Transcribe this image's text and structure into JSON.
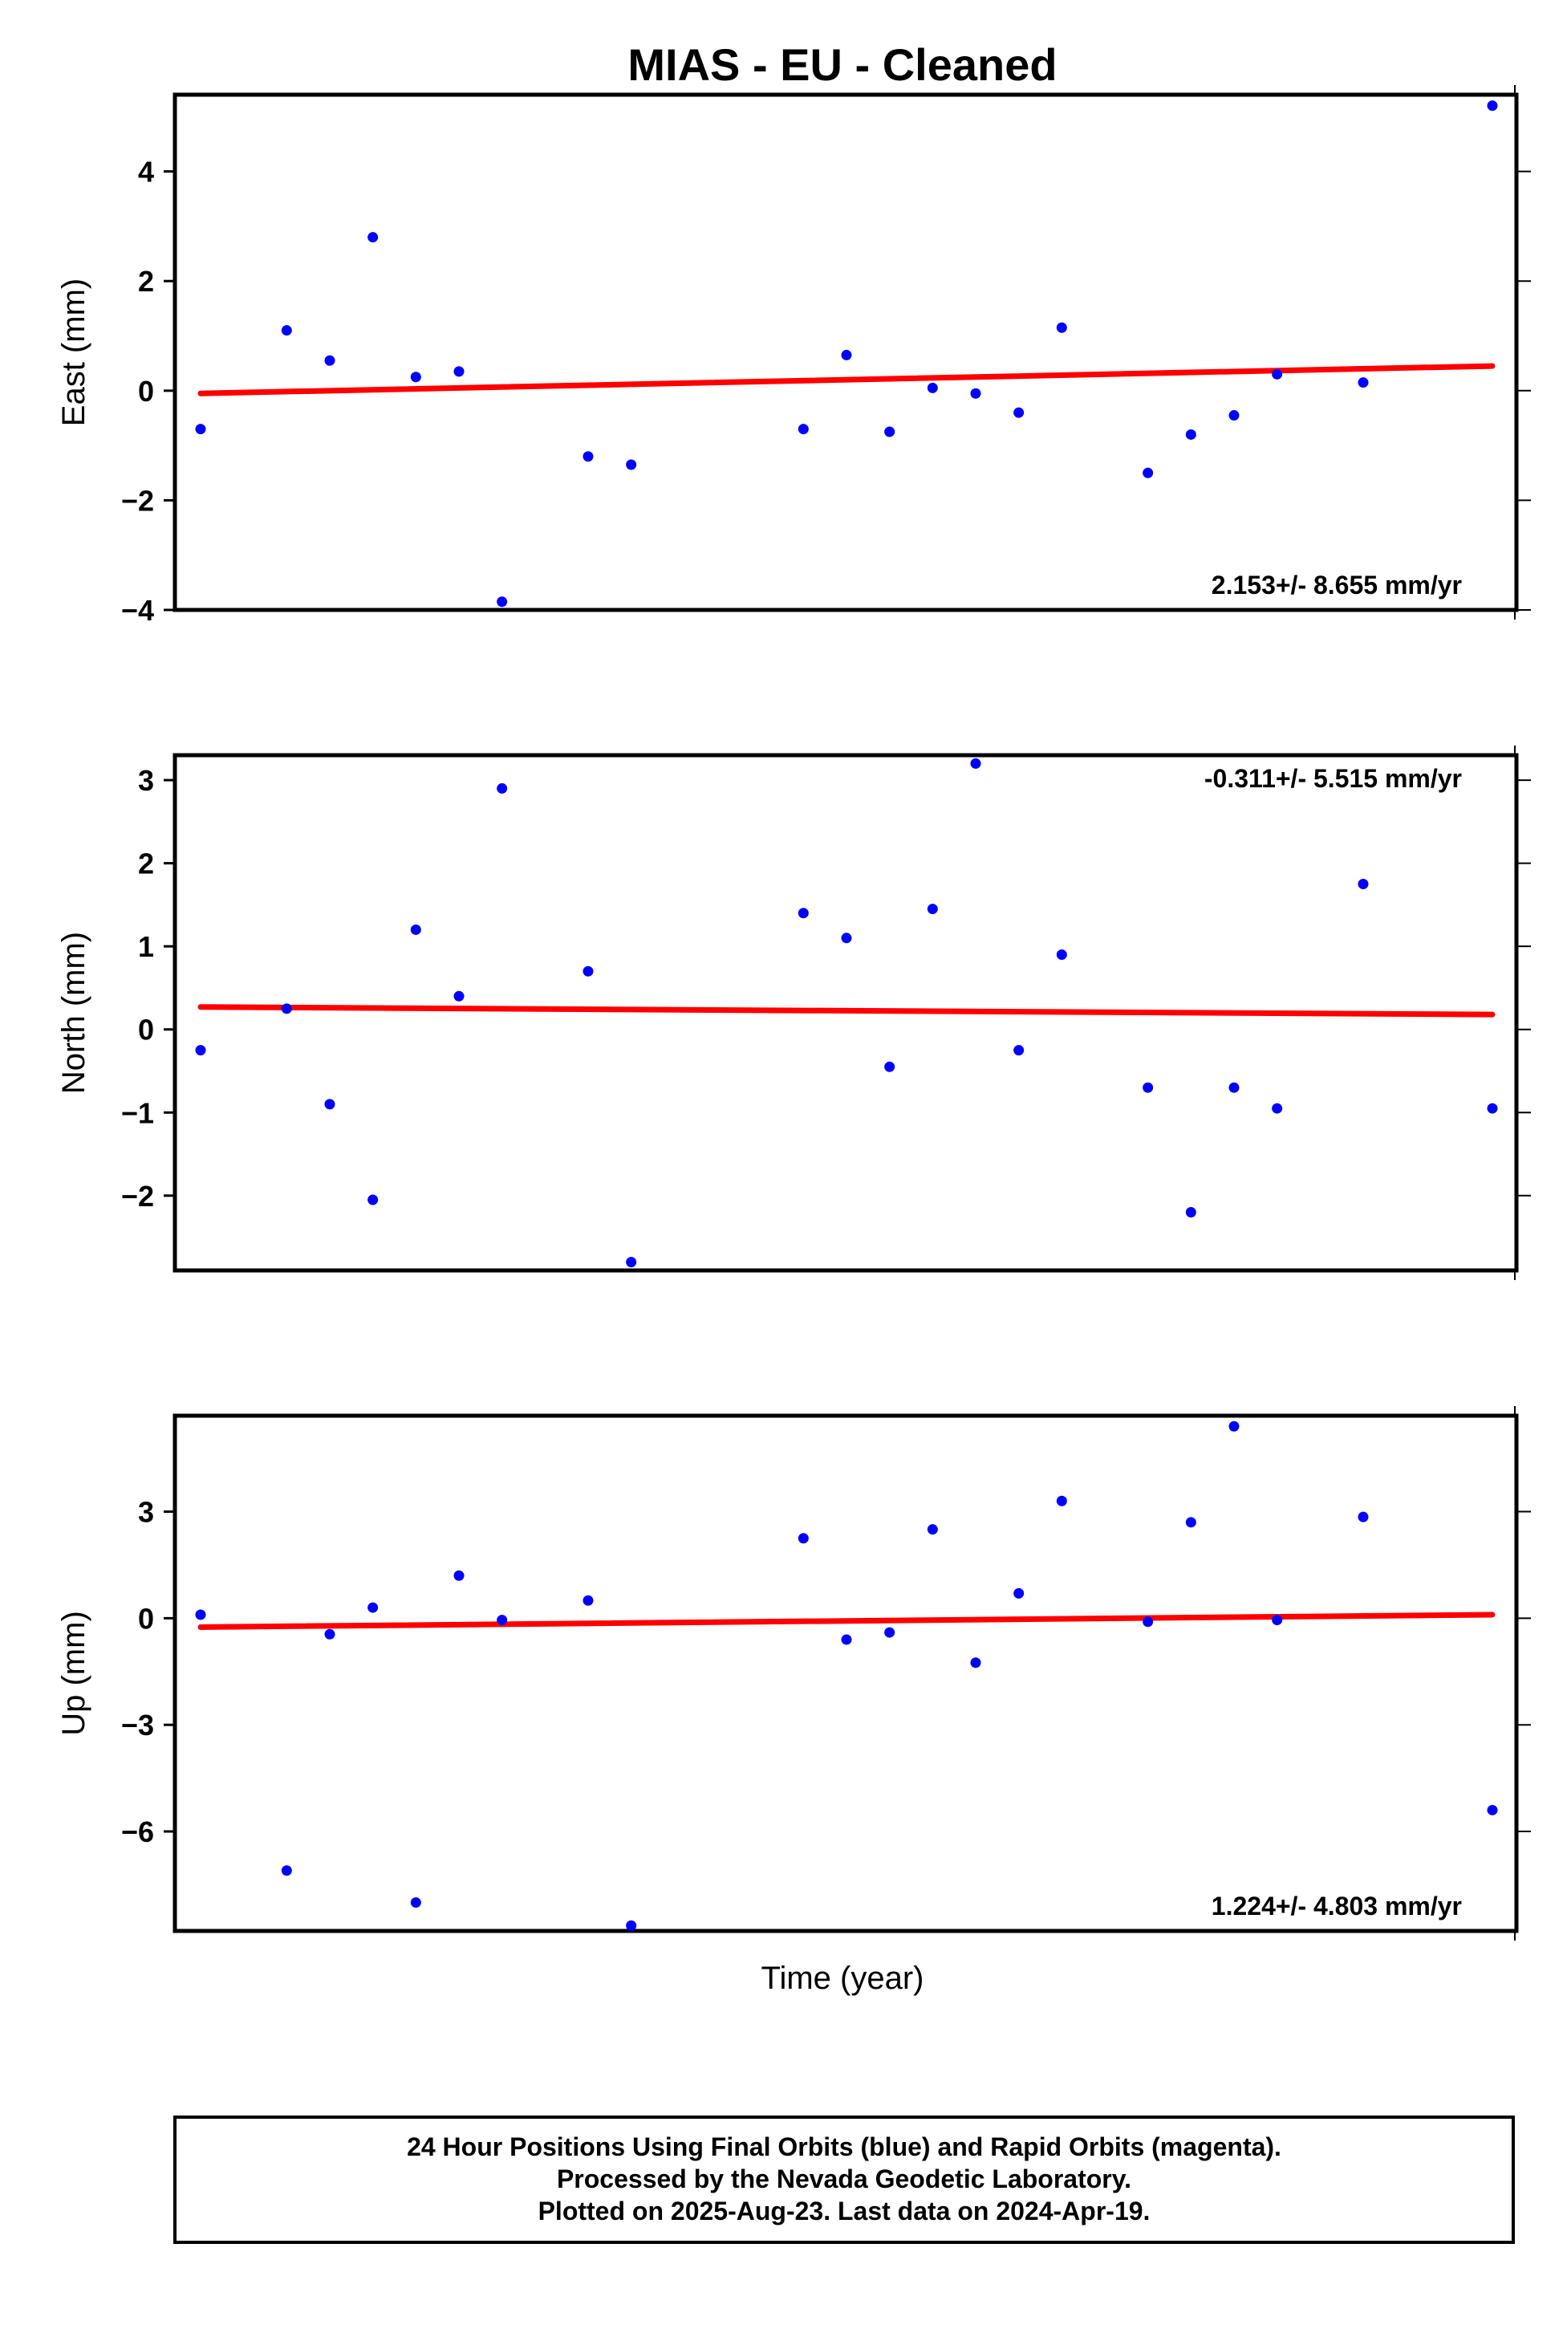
{
  "figure": {
    "title": "MIAS  - EU - Cleaned",
    "xlabel": "Time (year)",
    "footer": [
      "24 Hour Positions Using Final Orbits (blue) and Rapid Orbits (magenta).",
      "Processed by the Nevada Geodetic Laboratory.",
      "Plotted on 2025-Aug-23. Last data on 2024-Apr-19."
    ],
    "colors": {
      "points": "#0000ff",
      "trend": "#ff0000",
      "frame": "#000000"
    }
  },
  "chart_data": [
    {
      "type": "scatter",
      "id": "east",
      "ylabel": "East (mm)",
      "rate_label": "2.153+/- 8.655 mm/yr",
      "rate_position": "bottom-right",
      "ylim": [
        -4,
        5.4
      ],
      "yticks": [
        4,
        2,
        0,
        -2,
        -4
      ],
      "ytick_labels": [
        "4",
        "2",
        "0",
        "−2",
        "−4"
      ],
      "x": [
        1,
        3,
        4,
        5,
        6,
        7,
        8,
        10,
        11,
        15,
        16,
        17,
        18,
        19,
        20,
        21,
        23,
        24,
        25,
        26,
        28,
        31
      ],
      "y": [
        -0.7,
        1.1,
        0.55,
        2.8,
        0.25,
        0.35,
        -3.85,
        -1.2,
        -1.35,
        -0.7,
        0.65,
        -0.75,
        0.05,
        -0.05,
        -0.4,
        1.15,
        -1.5,
        -0.8,
        -0.45,
        0.3,
        0.15,
        5.2
      ],
      "trend": {
        "y_start": -0.05,
        "y_end": 0.45
      },
      "grid": false
    },
    {
      "type": "scatter",
      "id": "north",
      "ylabel": "North (mm)",
      "rate_label": "-0.311+/- 5.515 mm/yr",
      "rate_position": "top-right",
      "ylim": [
        -2.9,
        3.3
      ],
      "yticks": [
        3,
        2,
        1,
        0,
        -1,
        -2
      ],
      "ytick_labels": [
        "3",
        "2",
        "1",
        "0",
        "−1",
        "−2"
      ],
      "x": [
        1,
        3,
        4,
        5,
        6,
        7,
        8,
        10,
        11,
        15,
        16,
        17,
        18,
        19,
        20,
        21,
        23,
        24,
        25,
        26,
        28,
        31
      ],
      "y": [
        -0.25,
        0.25,
        -0.9,
        -2.05,
        1.2,
        0.4,
        2.9,
        0.7,
        -2.8,
        1.4,
        1.1,
        -0.45,
        1.45,
        3.2,
        -0.25,
        0.9,
        -0.7,
        -2.2,
        -0.7,
        -0.95,
        1.75,
        -0.95
      ],
      "trend": {
        "y_start": 0.27,
        "y_end": 0.18
      },
      "grid": false
    },
    {
      "type": "scatter",
      "id": "up",
      "ylabel": "Up (mm)",
      "rate_label": "1.224+/- 4.803 mm/yr",
      "rate_position": "bottom-right",
      "ylim": [
        -8.8,
        5.7
      ],
      "yticks": [
        3,
        0,
        -3,
        -6
      ],
      "ytick_labels": [
        "3",
        "0",
        "−3",
        "−6"
      ],
      "x": [
        1,
        3,
        4,
        5,
        6,
        7,
        8,
        10,
        11,
        15,
        16,
        17,
        18,
        19,
        20,
        21,
        23,
        24,
        25,
        26,
        28,
        31
      ],
      "y": [
        0.1,
        -7.1,
        -0.45,
        0.3,
        -8.0,
        1.2,
        -0.05,
        0.5,
        -8.65,
        2.25,
        -0.6,
        -0.4,
        2.5,
        -1.25,
        0.7,
        3.3,
        -0.1,
        2.7,
        5.4,
        -0.05,
        2.85,
        -5.4
      ],
      "trend": {
        "y_start": -0.25,
        "y_end": 0.1
      },
      "grid": false
    }
  ]
}
